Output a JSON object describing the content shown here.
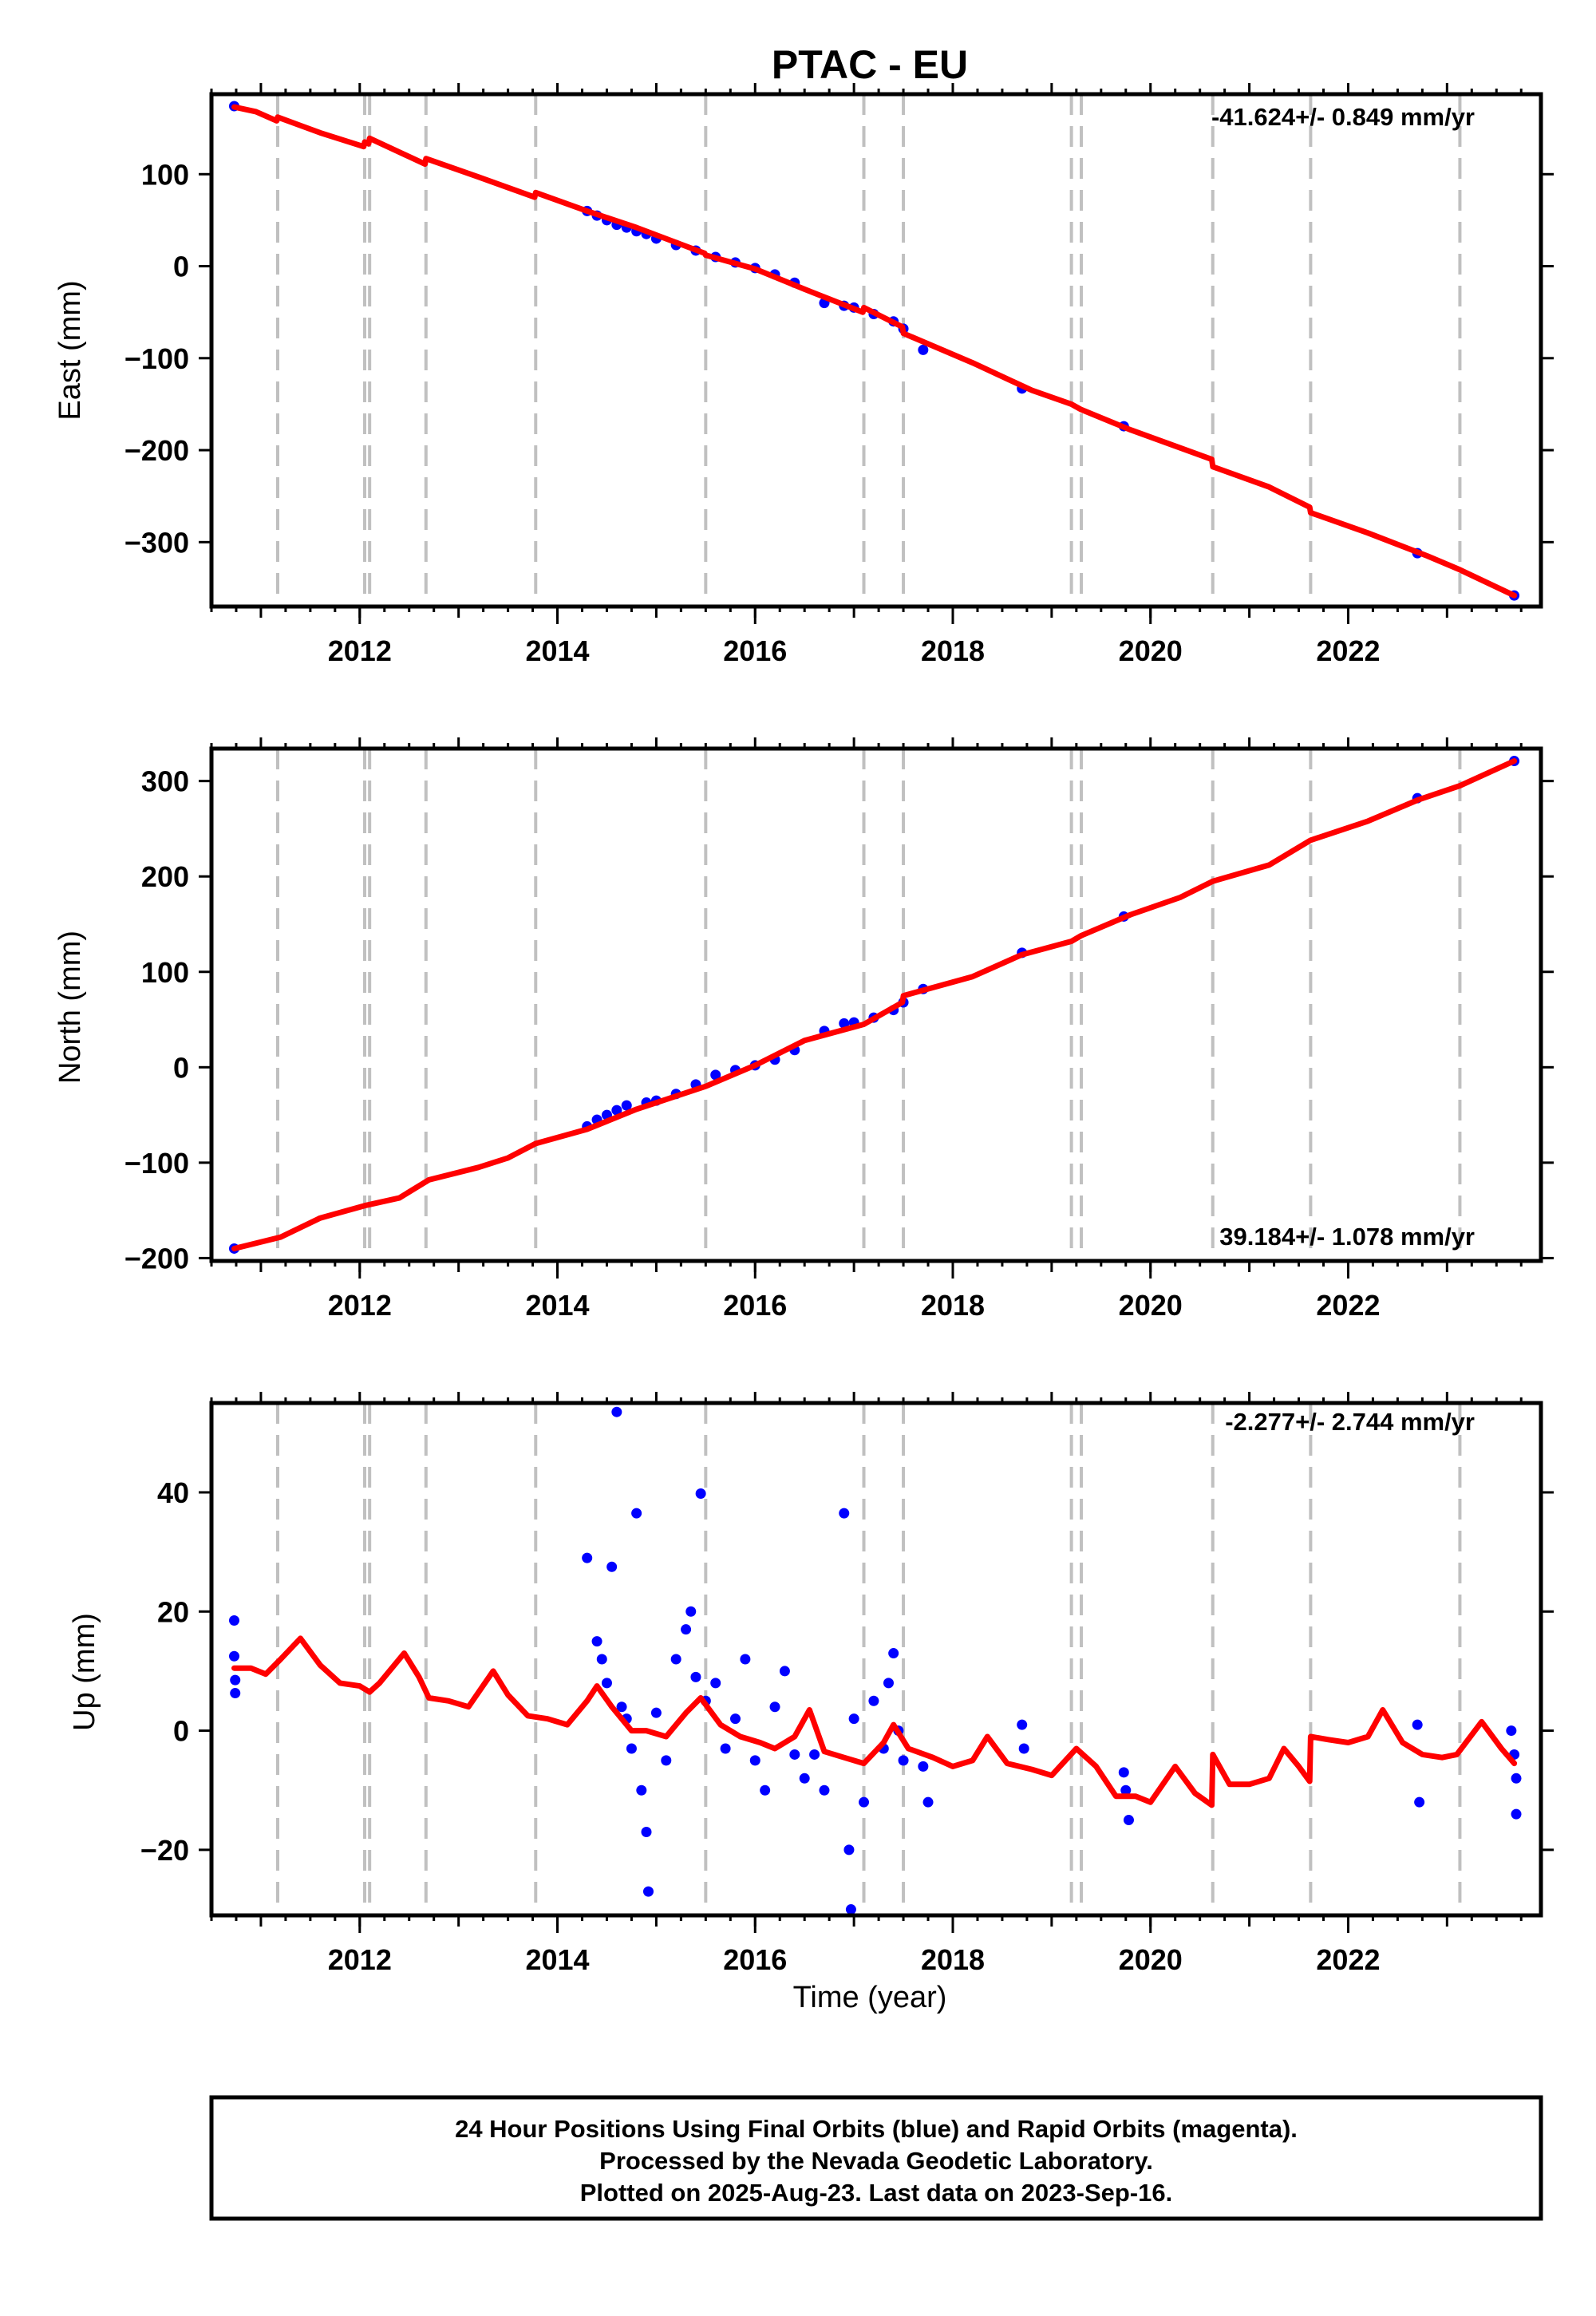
{
  "title": "PTAC - EU",
  "footer": {
    "lines": [
      "24 Hour Positions Using Final Orbits (blue) and Rapid Orbits (magenta).",
      "Processed by the Nevada Geodetic Laboratory.",
      "Plotted on 2025-Aug-23. Last data on 2023-Sep-16."
    ]
  },
  "colors": {
    "data": "#0000ff",
    "model": "#ff0000",
    "steps": "#c0c0c0",
    "frame": "#000000"
  },
  "chart_data": [
    {
      "type": "scatter",
      "id": "east",
      "ylabel": "East (mm)",
      "xlabel": "",
      "rate_label": "-41.624+/- 0.849 mm/yr",
      "xlim": [
        2010.5,
        2023.95
      ],
      "ylim": [
        -370,
        187
      ],
      "x_ticks": [
        "2012",
        "2014",
        "2016",
        "2018",
        "2020",
        "2022"
      ],
      "y_ticks": [
        "100",
        "0",
        "−100",
        "−200",
        "−300"
      ],
      "y_tick_values": [
        100,
        0,
        -100,
        -200,
        -300
      ],
      "step_epochs": [
        2011.17,
        2012.05,
        2012.1,
        2012.67,
        2013.78,
        2015.5,
        2017.1,
        2017.5,
        2019.2,
        2019.3,
        2020.63,
        2021.62,
        2023.13
      ],
      "series": [
        {
          "points": [
            [
              2010.73,
              174
            ],
            [
              2014.3,
              60
            ],
            [
              2014.4,
              55
            ],
            [
              2014.5,
              50
            ],
            [
              2014.6,
              45
            ],
            [
              2014.7,
              42
            ],
            [
              2014.8,
              38
            ],
            [
              2014.9,
              35
            ],
            [
              2015.0,
              30
            ],
            [
              2015.2,
              23
            ],
            [
              2015.4,
              17
            ],
            [
              2015.6,
              10
            ],
            [
              2015.8,
              4
            ],
            [
              2016.0,
              -2
            ],
            [
              2016.2,
              -9
            ],
            [
              2016.4,
              -18
            ],
            [
              2016.7,
              -40
            ],
            [
              2016.9,
              -43
            ],
            [
              2017.0,
              -45
            ],
            [
              2017.2,
              -52
            ],
            [
              2017.4,
              -60
            ],
            [
              2017.5,
              -68
            ],
            [
              2017.7,
              -91
            ],
            [
              2018.7,
              -133
            ],
            [
              2019.73,
              -174
            ],
            [
              2022.7,
              -312
            ],
            [
              2023.68,
              -358
            ]
          ]
        }
      ],
      "model": [
        [
          2010.73,
          173
        ],
        [
          2010.95,
          168
        ],
        [
          2011.16,
          158
        ],
        [
          2011.17,
          162
        ],
        [
          2011.6,
          145
        ],
        [
          2012.04,
          130
        ],
        [
          2012.05,
          135
        ],
        [
          2012.09,
          133
        ],
        [
          2012.1,
          139
        ],
        [
          2012.66,
          111
        ],
        [
          2012.67,
          117
        ],
        [
          2013.2,
          97
        ],
        [
          2013.77,
          75
        ],
        [
          2013.78,
          80
        ],
        [
          2014.3,
          60
        ],
        [
          2014.8,
          42
        ],
        [
          2015.49,
          14
        ],
        [
          2015.5,
          12
        ],
        [
          2016.0,
          -3
        ],
        [
          2016.5,
          -25
        ],
        [
          2017.09,
          -50
        ],
        [
          2017.1,
          -45
        ],
        [
          2017.49,
          -66
        ],
        [
          2017.5,
          -73
        ],
        [
          2018.2,
          -105
        ],
        [
          2018.8,
          -135
        ],
        [
          2019.2,
          -150
        ],
        [
          2019.3,
          -156
        ],
        [
          2019.8,
          -178
        ],
        [
          2020.62,
          -210
        ],
        [
          2020.63,
          -218
        ],
        [
          2021.2,
          -240
        ],
        [
          2021.61,
          -262
        ],
        [
          2021.62,
          -268
        ],
        [
          2022.2,
          -290
        ],
        [
          2022.8,
          -315
        ],
        [
          2023.13,
          -330
        ],
        [
          2023.68,
          -358
        ]
      ]
    },
    {
      "type": "scatter",
      "id": "north",
      "ylabel": "North (mm)",
      "xlabel": "",
      "rate_label": "39.184+/- 1.078 mm/yr",
      "xlim": [
        2010.5,
        2023.95
      ],
      "ylim": [
        -203,
        334
      ],
      "x_ticks": [
        "2012",
        "2014",
        "2016",
        "2018",
        "2020",
        "2022"
      ],
      "y_ticks": [
        "300",
        "200",
        "100",
        "0",
        "−100",
        "−200"
      ],
      "y_tick_values": [
        300,
        200,
        100,
        0,
        -100,
        -200
      ],
      "step_epochs": [
        2011.17,
        2012.05,
        2012.1,
        2012.67,
        2013.78,
        2015.5,
        2017.1,
        2017.5,
        2019.2,
        2019.3,
        2020.63,
        2021.62,
        2023.13
      ],
      "series": [
        {
          "points": [
            [
              2010.73,
              -190
            ],
            [
              2014.3,
              -62
            ],
            [
              2014.4,
              -55
            ],
            [
              2014.5,
              -50
            ],
            [
              2014.6,
              -45
            ],
            [
              2014.7,
              -40
            ],
            [
              2014.9,
              -37
            ],
            [
              2015.0,
              -35
            ],
            [
              2015.2,
              -28
            ],
            [
              2015.4,
              -18
            ],
            [
              2015.6,
              -8
            ],
            [
              2015.8,
              -3
            ],
            [
              2016.0,
              2
            ],
            [
              2016.2,
              8
            ],
            [
              2016.4,
              18
            ],
            [
              2016.7,
              38
            ],
            [
              2016.9,
              46
            ],
            [
              2017.0,
              47
            ],
            [
              2017.2,
              52
            ],
            [
              2017.4,
              60
            ],
            [
              2017.5,
              68
            ],
            [
              2017.7,
              82
            ],
            [
              2018.7,
              120
            ],
            [
              2019.73,
              158
            ],
            [
              2022.7,
              282
            ],
            [
              2023.68,
              321
            ]
          ]
        }
      ],
      "model": [
        [
          2010.73,
          -190
        ],
        [
          2011.2,
          -178
        ],
        [
          2011.6,
          -158
        ],
        [
          2012.05,
          -145
        ],
        [
          2012.4,
          -137
        ],
        [
          2012.7,
          -118
        ],
        [
          2013.2,
          -105
        ],
        [
          2013.5,
          -95
        ],
        [
          2013.78,
          -80
        ],
        [
          2014.3,
          -65
        ],
        [
          2014.8,
          -44
        ],
        [
          2015.5,
          -20
        ],
        [
          2016.0,
          2
        ],
        [
          2016.5,
          28
        ],
        [
          2017.1,
          45
        ],
        [
          2017.49,
          68
        ],
        [
          2017.5,
          75
        ],
        [
          2018.2,
          95
        ],
        [
          2018.7,
          118
        ],
        [
          2019.2,
          132
        ],
        [
          2019.3,
          138
        ],
        [
          2019.8,
          160
        ],
        [
          2020.3,
          178
        ],
        [
          2020.63,
          195
        ],
        [
          2021.2,
          212
        ],
        [
          2021.62,
          238
        ],
        [
          2022.2,
          258
        ],
        [
          2022.7,
          280
        ],
        [
          2023.13,
          295
        ],
        [
          2023.68,
          321
        ]
      ]
    },
    {
      "type": "scatter",
      "id": "up",
      "ylabel": "Up (mm)",
      "xlabel": "Time (year)",
      "rate_label": "-2.277+/- 2.744 mm/yr",
      "xlim": [
        2010.5,
        2023.95
      ],
      "ylim": [
        -31,
        55
      ],
      "x_ticks": [
        "2012",
        "2014",
        "2016",
        "2018",
        "2020",
        "2022"
      ],
      "y_ticks": [
        "40",
        "20",
        "0",
        "−20"
      ],
      "y_tick_values": [
        40,
        20,
        0,
        -20
      ],
      "step_epochs": [
        2011.17,
        2012.05,
        2012.1,
        2012.67,
        2013.78,
        2015.5,
        2017.1,
        2017.5,
        2019.2,
        2019.3,
        2020.63,
        2021.62,
        2023.13
      ],
      "series": [
        {
          "points": [
            [
              2010.73,
              18.5
            ],
            [
              2010.73,
              12.5
            ],
            [
              2010.74,
              8.5
            ],
            [
              2010.74,
              6.3
            ],
            [
              2014.3,
              29
            ],
            [
              2014.4,
              15
            ],
            [
              2014.45,
              12
            ],
            [
              2014.5,
              8
            ],
            [
              2014.55,
              27.5
            ],
            [
              2014.6,
              53.5
            ],
            [
              2014.65,
              4
            ],
            [
              2014.7,
              2
            ],
            [
              2014.75,
              -3
            ],
            [
              2014.8,
              36.5
            ],
            [
              2014.85,
              -10
            ],
            [
              2014.9,
              -17
            ],
            [
              2014.92,
              -27
            ],
            [
              2015.0,
              3
            ],
            [
              2015.1,
              -5
            ],
            [
              2015.2,
              12
            ],
            [
              2015.3,
              17
            ],
            [
              2015.35,
              20
            ],
            [
              2015.4,
              9
            ],
            [
              2015.45,
              39.8
            ],
            [
              2015.5,
              5
            ],
            [
              2015.6,
              8
            ],
            [
              2015.7,
              -3
            ],
            [
              2015.8,
              2
            ],
            [
              2015.9,
              12
            ],
            [
              2016.0,
              -5
            ],
            [
              2016.1,
              -10
            ],
            [
              2016.2,
              4
            ],
            [
              2016.3,
              10
            ],
            [
              2016.4,
              -4
            ],
            [
              2016.5,
              -8
            ],
            [
              2016.6,
              -4
            ],
            [
              2016.7,
              -10
            ],
            [
              2016.9,
              36.5
            ],
            [
              2016.95,
              -20
            ],
            [
              2016.97,
              -30
            ],
            [
              2017.0,
              2
            ],
            [
              2017.1,
              -12
            ],
            [
              2017.2,
              5
            ],
            [
              2017.3,
              -3
            ],
            [
              2017.35,
              8
            ],
            [
              2017.4,
              13
            ],
            [
              2017.45,
              0
            ],
            [
              2017.5,
              -5
            ],
            [
              2017.7,
              -6
            ],
            [
              2017.75,
              -12
            ],
            [
              2018.7,
              1
            ],
            [
              2018.72,
              -3
            ],
            [
              2019.73,
              -7
            ],
            [
              2019.75,
              -10
            ],
            [
              2019.78,
              -15
            ],
            [
              2022.7,
              1
            ],
            [
              2022.72,
              -12
            ],
            [
              2023.65,
              0
            ],
            [
              2023.68,
              -4
            ],
            [
              2023.7,
              -8
            ],
            [
              2023.7,
              -14
            ]
          ]
        }
      ],
      "model": [
        [
          2010.73,
          10.5
        ],
        [
          2010.9,
          10.5
        ],
        [
          2011.05,
          9.5
        ],
        [
          2011.2,
          12
        ],
        [
          2011.4,
          15.5
        ],
        [
          2011.6,
          11
        ],
        [
          2011.8,
          8
        ],
        [
          2012.0,
          7.5
        ],
        [
          2012.1,
          6.5
        ],
        [
          2012.2,
          8
        ],
        [
          2012.45,
          13
        ],
        [
          2012.6,
          9
        ],
        [
          2012.7,
          5.5
        ],
        [
          2012.9,
          5
        ],
        [
          2013.1,
          4
        ],
        [
          2013.35,
          10
        ],
        [
          2013.5,
          6
        ],
        [
          2013.7,
          2.5
        ],
        [
          2013.9,
          2
        ],
        [
          2014.1,
          1
        ],
        [
          2014.3,
          5
        ],
        [
          2014.4,
          7.5
        ],
        [
          2014.55,
          4
        ],
        [
          2014.75,
          0
        ],
        [
          2014.9,
          0
        ],
        [
          2015.1,
          -1
        ],
        [
          2015.3,
          3
        ],
        [
          2015.45,
          5.5
        ],
        [
          2015.65,
          1
        ],
        [
          2015.85,
          -1
        ],
        [
          2016.05,
          -2
        ],
        [
          2016.2,
          -3
        ],
        [
          2016.4,
          -1
        ],
        [
          2016.55,
          3.5
        ],
        [
          2016.7,
          -3.5
        ],
        [
          2016.9,
          -4.5
        ],
        [
          2017.1,
          -5.5
        ],
        [
          2017.3,
          -2
        ],
        [
          2017.4,
          1
        ],
        [
          2017.55,
          -3
        ],
        [
          2017.8,
          -4.5
        ],
        [
          2018.0,
          -6
        ],
        [
          2018.2,
          -5
        ],
        [
          2018.35,
          -1
        ],
        [
          2018.55,
          -5.5
        ],
        [
          2018.8,
          -6.5
        ],
        [
          2019.0,
          -7.5
        ],
        [
          2019.25,
          -3
        ],
        [
          2019.45,
          -6
        ],
        [
          2019.65,
          -11
        ],
        [
          2019.85,
          -11
        ],
        [
          2020.0,
          -12
        ],
        [
          2020.25,
          -6
        ],
        [
          2020.45,
          -10.5
        ],
        [
          2020.62,
          -12.5
        ],
        [
          2020.63,
          -4
        ],
        [
          2020.8,
          -9
        ],
        [
          2021.0,
          -9
        ],
        [
          2021.2,
          -8
        ],
        [
          2021.35,
          -3
        ],
        [
          2021.5,
          -6
        ],
        [
          2021.61,
          -8.5
        ],
        [
          2021.62,
          -1
        ],
        [
          2021.8,
          -1.5
        ],
        [
          2022.0,
          -2
        ],
        [
          2022.2,
          -1
        ],
        [
          2022.35,
          3.5
        ],
        [
          2022.55,
          -2
        ],
        [
          2022.75,
          -4
        ],
        [
          2022.95,
          -4.5
        ],
        [
          2023.1,
          -4
        ],
        [
          2023.35,
          1.5
        ],
        [
          2023.55,
          -3
        ],
        [
          2023.68,
          -5.5
        ]
      ]
    }
  ]
}
